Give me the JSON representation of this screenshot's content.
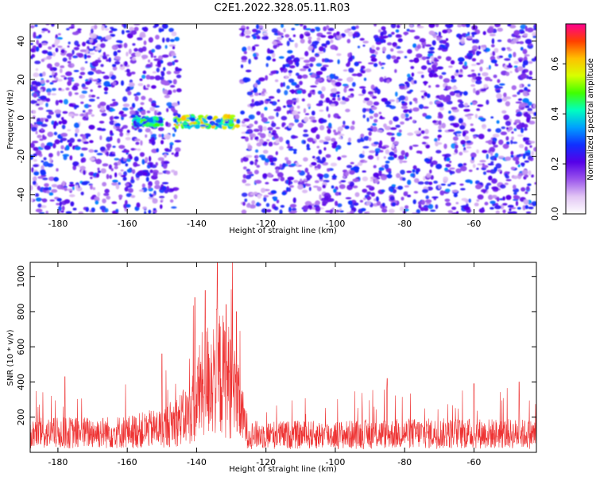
{
  "title": "C2E1.2022.328.05.11.R03",
  "chart_data": [
    {
      "type": "heatmap",
      "title": "C2E1.2022.328.05.11.R03",
      "xlabel": "Height of straight line (km)",
      "ylabel": "Frequency (Hz)",
      "xlim": [
        -188,
        -42
      ],
      "ylim": [
        -50,
        49
      ],
      "xticks": [
        -180,
        -160,
        -140,
        -120,
        -100,
        -80,
        -60
      ],
      "yticks": [
        -40,
        -20,
        0,
        20,
        40
      ],
      "colorbar": {
        "label": "Normalized spectral amplitude",
        "range": [
          0.0,
          0.76
        ],
        "ticks": [
          0.0,
          0.2,
          0.4,
          0.6
        ],
        "colors": [
          "#ffffff",
          "#e2c6f4",
          "#9b55ec",
          "#5500e8",
          "#1030ff",
          "#00a0ff",
          "#00ffc0",
          "#40ff00",
          "#d8ff00",
          "#ffc000",
          "#ff4000",
          "#ff0090"
        ]
      },
      "features": [
        {
          "x_range": [
            -145,
            -127
          ],
          "y_range": [
            -50,
            49
          ],
          "note": "gap",
          "value": 0.0
        },
        {
          "x_range": [
            -158,
            -150
          ],
          "y_range": [
            -4,
            0
          ],
          "value": 0.3
        },
        {
          "x_range": [
            -146,
            -128
          ],
          "y_range": [
            -5,
            1
          ],
          "value": 0.45
        }
      ],
      "grid": false
    },
    {
      "type": "line",
      "xlabel": "Height of straight line (km)",
      "ylabel": "SNR (10 * v/v)",
      "xlim": [
        -188,
        -42
      ],
      "ylim": [
        0,
        1080
      ],
      "xticks": [
        -180,
        -160,
        -140,
        -120,
        -100,
        -80,
        -60
      ],
      "yticks": [
        200,
        400,
        600,
        800,
        1000
      ],
      "color": "#ee3333",
      "baseline": [
        {
          "x": -188,
          "y": 130
        },
        {
          "x": -160,
          "y": 140
        },
        {
          "x": -150,
          "y": 170
        },
        {
          "x": -142,
          "y": 260
        },
        {
          "x": -138,
          "y": 480
        },
        {
          "x": -134,
          "y": 560
        },
        {
          "x": -130,
          "y": 480
        },
        {
          "x": -127,
          "y": 260
        },
        {
          "x": -125,
          "y": 120
        },
        {
          "x": -100,
          "y": 120
        },
        {
          "x": -80,
          "y": 130
        },
        {
          "x": -60,
          "y": 130
        },
        {
          "x": -42,
          "y": 125
        }
      ],
      "peaks": [
        {
          "x": -134,
          "y": 1080
        },
        {
          "x": -137.5,
          "y": 920
        },
        {
          "x": -140.5,
          "y": 880
        },
        {
          "x": -131.5,
          "y": 840
        },
        {
          "x": -128.5,
          "y": 800
        },
        {
          "x": -150,
          "y": 560
        },
        {
          "x": -178,
          "y": 430
        },
        {
          "x": -85,
          "y": 420
        },
        {
          "x": -47,
          "y": 400
        },
        {
          "x": -60,
          "y": 390
        }
      ],
      "grid": false
    }
  ]
}
